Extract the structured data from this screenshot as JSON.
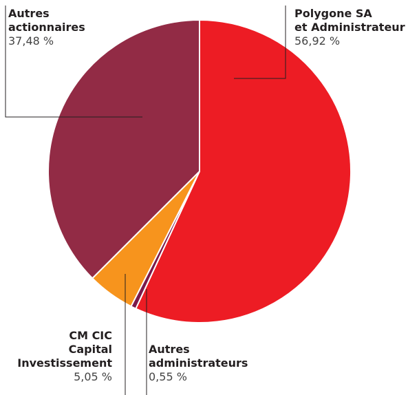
{
  "chart_data": {
    "type": "pie",
    "categories": [
      "Polygone SA\net Administrateur",
      "Autres\nadministrateurs",
      "CM CIC\nCapital\nInvestissement",
      "Autres\nactionnaires"
    ],
    "values": [
      56.92,
      0.55,
      5.05,
      37.48
    ],
    "value_labels": [
      "56,92 %",
      "0,55 %",
      "5,05 %",
      "37,48 %"
    ],
    "colors": [
      "#ed1c24",
      "#7b1a4b",
      "#f7941d",
      "#922b45"
    ]
  }
}
